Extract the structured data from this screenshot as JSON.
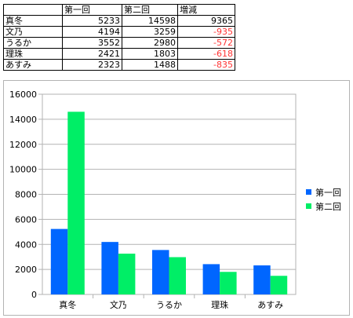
{
  "table": {
    "header": [
      "",
      "第一回",
      "第二回",
      "増減"
    ],
    "rows": [
      {
        "name": "真冬",
        "r1": "5233",
        "r2": "14598",
        "diff": "9365",
        "negative": false
      },
      {
        "name": "文乃",
        "r1": "4194",
        "r2": "3259",
        "diff": "-935",
        "negative": true
      },
      {
        "name": "うるか",
        "r1": "3552",
        "r2": "2980",
        "diff": "-572",
        "negative": true
      },
      {
        "name": "理珠",
        "r1": "2421",
        "r2": "1803",
        "diff": "-618",
        "negative": true
      },
      {
        "name": "あすみ",
        "r1": "2323",
        "r2": "1488",
        "diff": "-835",
        "negative": true
      }
    ]
  },
  "colors": {
    "series1": "#0066ff",
    "series2": "#00ee66",
    "negative": "#ff3333",
    "grid": "#b3b3b3"
  },
  "chart_data": {
    "type": "bar",
    "categories": [
      "真冬",
      "文乃",
      "うるか",
      "理珠",
      "あすみ"
    ],
    "series": [
      {
        "name": "第一回",
        "values": [
          5233,
          4194,
          3552,
          2421,
          2323
        ],
        "color": "#0066ff"
      },
      {
        "name": "第二回",
        "values": [
          14598,
          3259,
          2980,
          1803,
          1488
        ],
        "color": "#00ee66"
      }
    ],
    "ylim": [
      0,
      16000
    ],
    "yticks": [
      0,
      2000,
      4000,
      6000,
      8000,
      10000,
      12000,
      14000,
      16000
    ],
    "grid": true,
    "legend": "right"
  }
}
